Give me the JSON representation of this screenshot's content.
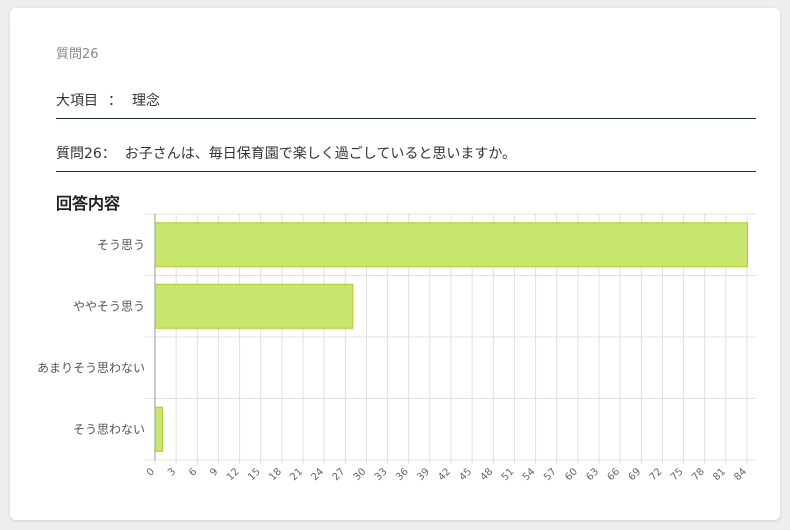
{
  "header": {
    "question_number": "質問26"
  },
  "category": {
    "label": "大項目",
    "separator": "：",
    "value": "理念"
  },
  "question": {
    "label": "質問26：",
    "text": "お子さんは、毎日保育園で楽しく過ごしていると思いますか。"
  },
  "section_title": "回答内容",
  "chart_data": {
    "type": "bar",
    "orientation": "horizontal",
    "categories": [
      "そう思う",
      "ややそう思う",
      "あまりそう思わない",
      "そう思わない"
    ],
    "values": [
      84,
      28,
      0,
      1
    ],
    "xlim": [
      0,
      84
    ],
    "xticks": [
      0,
      3,
      6,
      9,
      12,
      15,
      18,
      21,
      24,
      27,
      30,
      33,
      36,
      39,
      42,
      45,
      48,
      51,
      54,
      57,
      60,
      63,
      66,
      69,
      72,
      75,
      78,
      81,
      84
    ],
    "grid": true,
    "bar_fill": "#c8e66f",
    "bar_stroke": "#a6d12a",
    "grid_color": "#e0e0e0"
  }
}
